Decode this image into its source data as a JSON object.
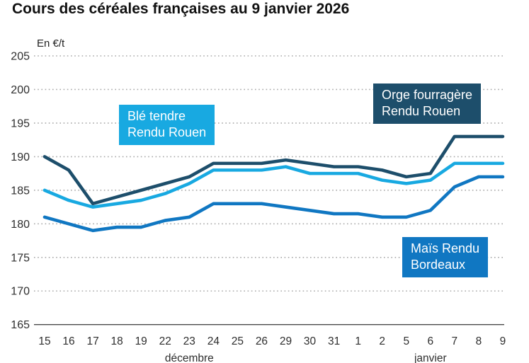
{
  "title": "Cours des céréales françaises au 9 janvier 2026",
  "chart_data": {
    "type": "line",
    "title": "Cours des céréales françaises au 9 janvier 2026",
    "unit_label": "En €/t",
    "ylabel": "En €/t",
    "ylim": [
      165,
      207
    ],
    "y_ticks": [
      165,
      170,
      175,
      180,
      185,
      190,
      195,
      200,
      205
    ],
    "grid": "horizontal dotted, solid baseline at 165",
    "legend_position": "labels on chart",
    "x_tick_labels": [
      "15",
      "16",
      "17",
      "18",
      "19",
      "22",
      "23",
      "24",
      "25",
      "26",
      "29",
      "30",
      "31",
      "1",
      "2",
      "5",
      "6",
      "7",
      "8",
      "9"
    ],
    "month_labels": [
      {
        "label": "décembre",
        "tick_index": 6
      },
      {
        "label": "janvier",
        "tick_index": 16
      }
    ],
    "series": [
      {
        "name": "Orge fourragère Rendu Rouen",
        "color": "#1d4e6b",
        "values": [
          190,
          188,
          183,
          184,
          185,
          186,
          187,
          189,
          189,
          189,
          189.5,
          189,
          188.5,
          188.5,
          188,
          187,
          187.5,
          193,
          193,
          193
        ]
      },
      {
        "name": "Blé tendre Rendu Rouen",
        "color": "#18a9e1",
        "values": [
          185,
          183.5,
          182.5,
          183,
          183.5,
          184.5,
          186,
          188,
          188,
          188,
          188.5,
          187.5,
          187.5,
          187.5,
          186.5,
          186,
          186.5,
          189,
          189,
          189
        ]
      },
      {
        "name": "Maïs Rendu Bordeaux",
        "color": "#1077c2",
        "values": [
          181,
          180,
          179,
          179.5,
          179.5,
          180.5,
          181,
          183,
          183,
          183,
          182.5,
          182,
          181.5,
          181.5,
          181,
          181,
          182,
          185.5,
          187,
          187
        ]
      }
    ],
    "annotations": [
      {
        "text_lines": [
          "Blé tendre",
          "Rendu Rouen"
        ],
        "bg": "#18a9e1"
      },
      {
        "text_lines": [
          "Orge fourragère",
          "Rendu Rouen"
        ],
        "bg": "#1d4e6b"
      },
      {
        "text_lines": [
          "Maïs Rendu",
          "Bordeaux"
        ],
        "bg": "#1077c2"
      }
    ]
  }
}
